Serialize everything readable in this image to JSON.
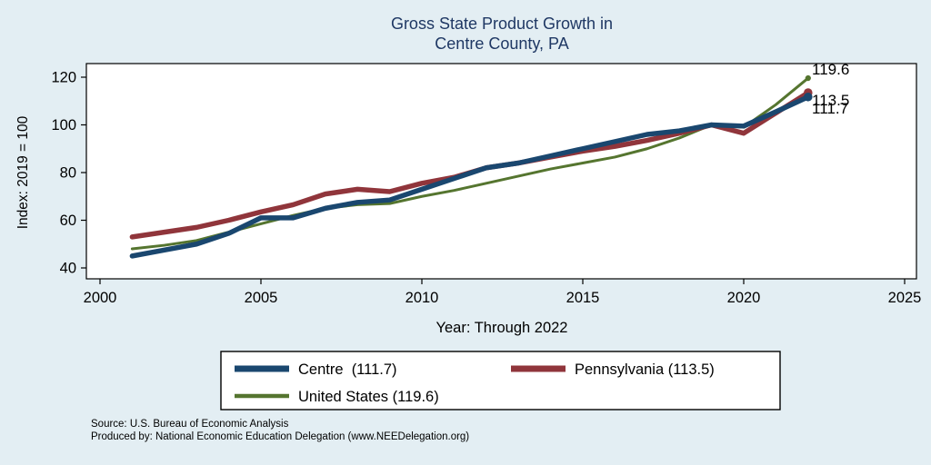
{
  "title": {
    "line1": "Gross State Product Growth in",
    "line2": "Centre County, PA"
  },
  "source": {
    "line1": "Source: U.S. Bureau of Economic Analysis",
    "line2": "Produced by: National Economic Education Delegation (www.NEEDelegation.org)"
  },
  "chart_data": {
    "type": "line",
    "title": "Gross State Product Growth in Centre County, PA",
    "xlabel": "Year: Through 2022",
    "ylabel": "Index: 2019 = 100",
    "xlim": [
      2000,
      2025
    ],
    "ylim": [
      40,
      120
    ],
    "x_ticks": [
      2000,
      2005,
      2010,
      2015,
      2020,
      2025
    ],
    "y_ticks": [
      40,
      60,
      80,
      100,
      120
    ],
    "grid": false,
    "legend_position": "bottom",
    "x": [
      2001,
      2002,
      2003,
      2004,
      2005,
      2006,
      2007,
      2008,
      2009,
      2010,
      2011,
      2012,
      2013,
      2014,
      2015,
      2016,
      2017,
      2018,
      2019,
      2020,
      2021,
      2022
    ],
    "series": [
      {
        "name": "Centre",
        "legend_label": "Centre  (111.7)",
        "final_value": 111.7,
        "color": "#1a476f",
        "width": 5.5,
        "values": [
          45,
          47.5,
          50,
          54.5,
          61,
          61,
          65,
          67.5,
          68.5,
          73,
          77.5,
          82,
          84,
          87,
          90,
          93,
          96,
          97.5,
          100,
          99.5,
          105.5,
          111.7
        ]
      },
      {
        "name": "Pennsylvania",
        "legend_label": "Pennsylvania (113.5)",
        "final_value": 113.5,
        "color": "#90353b",
        "width": 5.5,
        "values": [
          53,
          55,
          57,
          60,
          63.5,
          66.5,
          71,
          73,
          72,
          75.5,
          78,
          82,
          84,
          86.5,
          89,
          91,
          93.5,
          96.5,
          100,
          96.5,
          105,
          113.5
        ]
      },
      {
        "name": "United States",
        "legend_label": "United States (119.6)",
        "final_value": 119.6,
        "color": "#55752f",
        "width": 3,
        "values": [
          48,
          49.5,
          51.5,
          55,
          58.5,
          62,
          65,
          66.5,
          67,
          70,
          72.5,
          75.5,
          78.5,
          81.5,
          84,
          86.5,
          90,
          94.5,
          100,
          99,
          108.5,
          119.6
        ]
      }
    ],
    "end_labels": [
      "119.6",
      "113.5",
      "111.7"
    ]
  }
}
